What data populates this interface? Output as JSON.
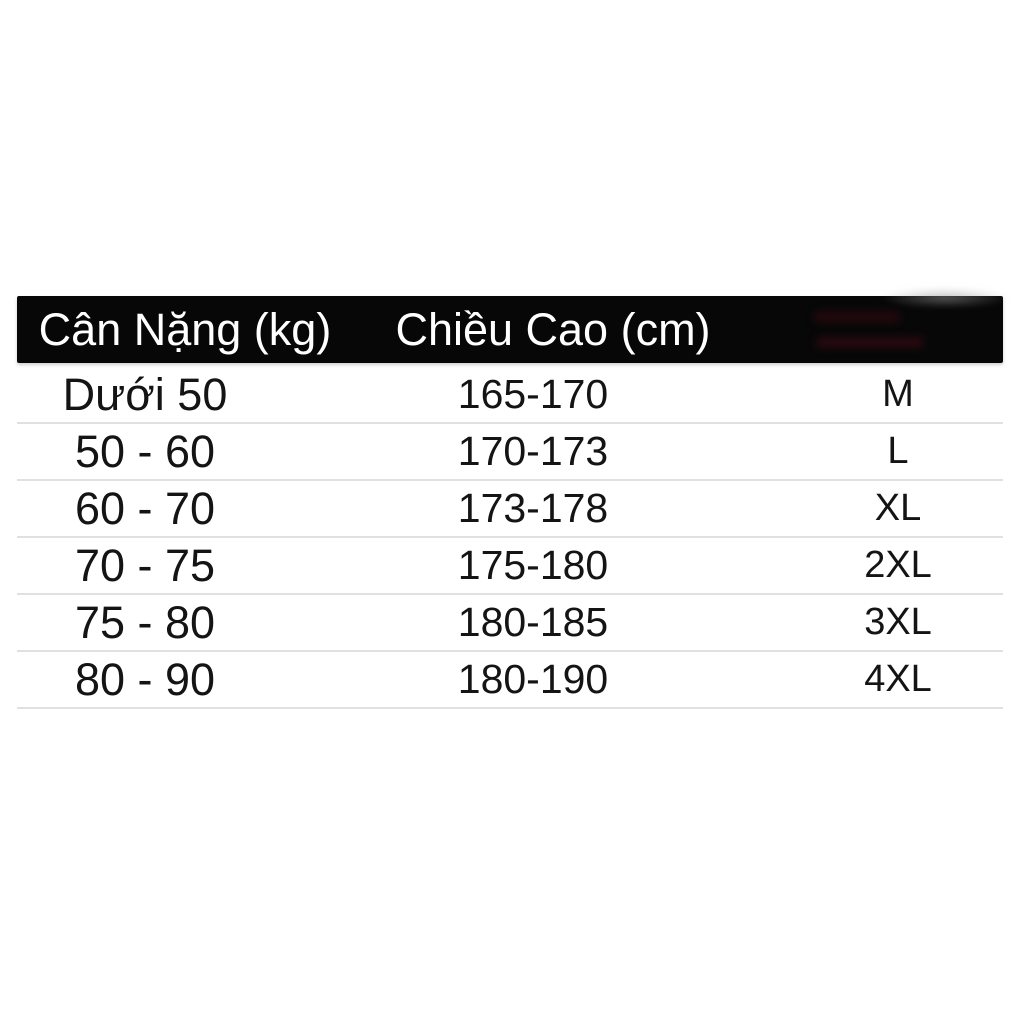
{
  "size_chart": {
    "header": {
      "weight_label": "Cân Nặng (kg)",
      "height_label": "Chiều Cao (cm)",
      "size_label": ""
    },
    "rows": [
      {
        "weight": "Dưới 50",
        "height": "165-170",
        "size": "M"
      },
      {
        "weight": "50 - 60",
        "height": "170-173",
        "size": "L"
      },
      {
        "weight": "60 - 70",
        "height": "173-178",
        "size": "XL"
      },
      {
        "weight": "70 - 75",
        "height": "175-180",
        "size": "2XL"
      },
      {
        "weight": "75 - 80",
        "height": "180-185",
        "size": "3XL"
      },
      {
        "weight": "80 - 90",
        "height": "180-190",
        "size": "4XL"
      }
    ],
    "colors": {
      "header_bg": "#070707",
      "header_text": "#ffffff",
      "body_text": "#141414",
      "divider": "#e0e0e0",
      "page_bg": "#ffffff"
    }
  }
}
